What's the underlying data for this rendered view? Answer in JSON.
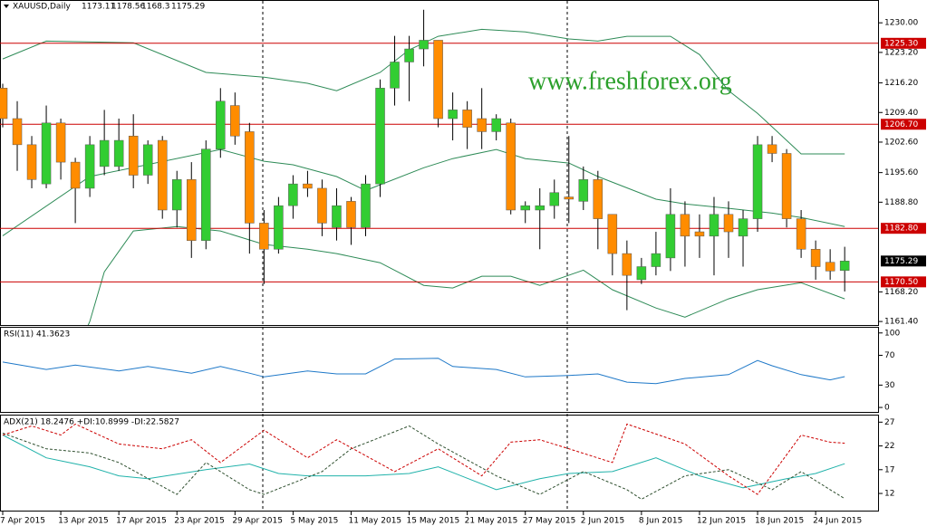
{
  "chart_data": [
    {
      "type": "candlestick",
      "title": "XAUUSD,Daily",
      "header_values": [
        1173.11,
        1178.56,
        1168.3,
        1175.29
      ],
      "watermark": "www.freshforex.org",
      "categories": [
        "7 Apr 2015",
        null,
        null,
        null,
        "13 Apr 2015",
        null,
        null,
        null,
        "17 Apr 2015",
        null,
        null,
        null,
        "23 Apr 2015",
        null,
        null,
        null,
        "29 Apr 2015",
        null,
        null,
        null,
        "5 May 2015",
        null,
        null,
        null,
        "11 May 2015",
        null,
        null,
        null,
        "15 May 2015",
        null,
        null,
        null,
        "21 May 2015",
        null,
        null,
        null,
        "27 May 2015",
        null,
        null,
        null,
        "2 Jun 2015",
        null,
        null,
        null,
        "8 Jun 2015",
        null,
        null,
        null,
        "12 Jun 2015",
        null,
        null,
        null,
        "18 Jun 2015",
        null,
        null,
        null,
        "24 Jun 2015",
        null,
        null
      ],
      "open": [
        1215,
        1208,
        1202,
        1193,
        1207,
        1198,
        1192,
        1197,
        1197,
        1204,
        1195,
        1203,
        1187,
        1194,
        1180,
        1201,
        1211,
        1205,
        1184,
        1178,
        1188,
        1193,
        1192,
        1183,
        1189,
        1183,
        1193,
        1215,
        1221,
        1224,
        1226,
        1208,
        1210,
        1208,
        1205,
        1207,
        1187,
        1187,
        1188,
        1190,
        1189,
        1194,
        1186,
        1177,
        1171,
        1174,
        1176,
        1186,
        1182,
        1181,
        1186,
        1181,
        1185,
        1202,
        1200,
        1185,
        1178,
        1175,
        1173.11
      ],
      "high": [
        1216,
        1212,
        1204,
        1211,
        1208,
        1199,
        1204,
        1210,
        1208,
        1209,
        1203,
        1204,
        1196,
        1198,
        1203,
        1215,
        1214,
        1207,
        1187,
        1190,
        1195,
        1196,
        1194,
        1192,
        1190,
        1195,
        1217,
        1227,
        1227,
        1233,
        1226,
        1214,
        1212,
        1215,
        1209,
        1208,
        1189,
        1192,
        1194,
        1204,
        1197,
        1196,
        1186,
        1180,
        1176,
        1182,
        1192,
        1189,
        1186,
        1190,
        1189,
        1187,
        1204,
        1204,
        1201,
        1187,
        1180,
        1178,
        1178.56
      ],
      "low": [
        1206,
        1196,
        1192,
        1192,
        1194,
        1184,
        1190,
        1195,
        1196,
        1192,
        1193,
        1185,
        1183,
        1176,
        1178,
        1199,
        1202,
        1177,
        1170,
        1177,
        1185,
        1190,
        1181,
        1180,
        1179,
        1181,
        1190,
        1211,
        1212,
        1220,
        1206,
        1203,
        1201,
        1201,
        1203,
        1186,
        1184,
        1178,
        1185,
        1184,
        1187,
        1178,
        1172,
        1164,
        1170,
        1172,
        1173,
        1174,
        1176,
        1172,
        1176,
        1174,
        1182,
        1198,
        1183,
        1176,
        1171,
        1171,
        1168.3
      ],
      "close": [
        1208,
        1202,
        1194,
        1207,
        1198,
        1192,
        1202,
        1203,
        1203,
        1195,
        1202,
        1187,
        1194,
        1180,
        1201,
        1212,
        1204,
        1184,
        1178,
        1188,
        1193,
        1192,
        1184,
        1188,
        1183,
        1193,
        1215,
        1221,
        1224,
        1226,
        1208,
        1210,
        1206,
        1205,
        1208,
        1187,
        1188,
        1188,
        1191,
        1189.5,
        1194,
        1185,
        1177,
        1172,
        1174,
        1177,
        1186,
        1181,
        1181,
        1186,
        1182,
        1185,
        1202,
        1200,
        1185,
        1178,
        1174,
        1173,
        1175.29
      ],
      "up_color": "#32cd32",
      "down_color": "#ff8c00",
      "wick_color": "#000000",
      "overlays": [
        {
          "color": "#2e8b57",
          "x": [
            0,
            3,
            9,
            14,
            18,
            21,
            23,
            26,
            28,
            30,
            33,
            36,
            39,
            41,
            43,
            46,
            48,
            50,
            52,
            53,
            55,
            58
          ],
          "values": [
            1221.7,
            1225.8,
            1225.4,
            1218.6,
            1217.5,
            1216.1,
            1214.4,
            1218.6,
            1223.8,
            1226.9,
            1228.5,
            1227.9,
            1226.3,
            1225.8,
            1226.9,
            1226.9,
            1222.7,
            1214.4,
            1209.2,
            1206.1,
            1199.9,
            1199.9
          ]
        },
        {
          "color": "#2e8b57",
          "x": [
            0,
            6,
            15,
            18,
            20,
            23,
            25,
            29,
            31,
            34,
            36,
            39,
            41,
            45,
            47,
            50,
            53,
            55,
            58
          ],
          "values": [
            1181.1,
            1194.7,
            1200.9,
            1198.2,
            1197.4,
            1194.7,
            1191.5,
            1196.7,
            1198.8,
            1200.9,
            1198.8,
            1197.8,
            1194.7,
            1189.5,
            1188.4,
            1187.4,
            1186.3,
            1185.3,
            1183.2
          ]
        },
        {
          "color": "#2e8b57",
          "x": [
            5,
            6,
            7,
            9,
            12,
            15,
            18,
            21,
            23,
            26,
            29,
            31,
            33,
            35,
            37,
            40,
            42,
            45,
            47,
            50,
            52,
            55,
            58
          ],
          "values": [
            1154.1,
            1161.4,
            1172.8,
            1182.2,
            1183.2,
            1182.2,
            1179.1,
            1178.0,
            1177.0,
            1174.9,
            1169.7,
            1169.1,
            1171.8,
            1171.8,
            1169.7,
            1173.2,
            1168.7,
            1164.5,
            1162.4,
            1166.6,
            1168.7,
            1170.3,
            1166.6
          ]
        }
      ],
      "hlines": {
        "color": "#cc0000",
        "values": [
          1225.3,
          1206.7,
          1182.8,
          1170.5
        ],
        "value_labels": [
          "1225.30",
          "1206.70",
          "1182.80",
          "1170.50"
        ]
      },
      "last_price": 1175.29,
      "ylim": [
        1160.8,
        1234.2
      ],
      "yticks": [
        {
          "value": 1230,
          "label": "1230.00"
        },
        {
          "value": 1223.2,
          "label": "1223.20"
        },
        {
          "value": 1216.2,
          "label": "1216.20"
        },
        {
          "value": 1209.4,
          "label": "1209.40"
        },
        {
          "value": 1202.6,
          "label": "1202.60"
        },
        {
          "value": 1195.6,
          "label": "1195.60"
        },
        {
          "value": 1188.8,
          "label": "1188.80"
        },
        {
          "value": 1168.2,
          "label": "1168.20"
        },
        {
          "value": 1161.4,
          "label": "1161.40"
        }
      ]
    },
    {
      "type": "line",
      "title": "RSI(11) 41.3623",
      "series": [
        {
          "color": "#1e78c8",
          "x": [
            0,
            3,
            5,
            8,
            10,
            13,
            15,
            17,
            18,
            21,
            23,
            25,
            26,
            27,
            30,
            31,
            34,
            36,
            39,
            41,
            43,
            45,
            47,
            50,
            52,
            53,
            55,
            57,
            58
          ],
          "values": [
            61,
            51,
            57,
            49,
            55,
            46,
            55,
            46,
            41,
            49,
            45,
            45,
            55,
            65,
            66,
            55,
            51,
            41,
            43,
            45,
            34,
            32,
            39,
            44,
            63,
            56,
            44,
            37,
            41.36
          ]
        }
      ],
      "ylim": [
        -6,
        107
      ],
      "yticks": [
        100,
        70,
        30,
        0
      ]
    },
    {
      "type": "line",
      "title": "ADX(21) 18.2476 +DI:10.8999 -DI:22.5827",
      "series": [
        {
          "color": "#20b2aa",
          "x": [
            0,
            3,
            6,
            8,
            10,
            14,
            17,
            19,
            21,
            25,
            28,
            30,
            34,
            37,
            39,
            42,
            45,
            48,
            51,
            54,
            56,
            58
          ],
          "values": [
            24.3,
            19.5,
            17.6,
            15.7,
            15.1,
            17.0,
            18.2,
            16.2,
            15.7,
            15.7,
            16.2,
            17.6,
            12.8,
            15.1,
            16.2,
            16.6,
            19.5,
            15.7,
            13.2,
            15.1,
            16.2,
            18.25
          ]
        },
        {
          "color": "#2f4f2f",
          "dash": true,
          "x": [
            0,
            3,
            6,
            8,
            12,
            14,
            17,
            18,
            22,
            24,
            28,
            30,
            34,
            37,
            40,
            43,
            44,
            47,
            50,
            53,
            55,
            57,
            58
          ],
          "values": [
            24.7,
            21.4,
            20.5,
            18.5,
            11.8,
            18.5,
            12.8,
            11.8,
            16.6,
            21.4,
            26.2,
            22.4,
            15.7,
            11.8,
            16.6,
            12.8,
            10.8,
            15.7,
            17.0,
            12.8,
            16.6,
            12.8,
            10.9
          ]
        },
        {
          "color": "#cc0000",
          "dash": true,
          "x": [
            0,
            2,
            4,
            5,
            8,
            11,
            13,
            15,
            18,
            21,
            23,
            27,
            30,
            33,
            35,
            37,
            39,
            42,
            43,
            47,
            50,
            52,
            55,
            57,
            58
          ],
          "values": [
            24.3,
            26.2,
            24.3,
            26.6,
            22.4,
            21.4,
            23.3,
            18.5,
            25.3,
            19.5,
            23.3,
            16.6,
            21.4,
            15.7,
            22.8,
            23.3,
            21.4,
            18.5,
            26.6,
            22.4,
            15.7,
            11.8,
            24.3,
            22.8,
            22.58
          ]
        }
      ],
      "ylim": [
        8.2,
        28.2
      ],
      "yticks": [
        27,
        22,
        17,
        12
      ]
    }
  ]
}
